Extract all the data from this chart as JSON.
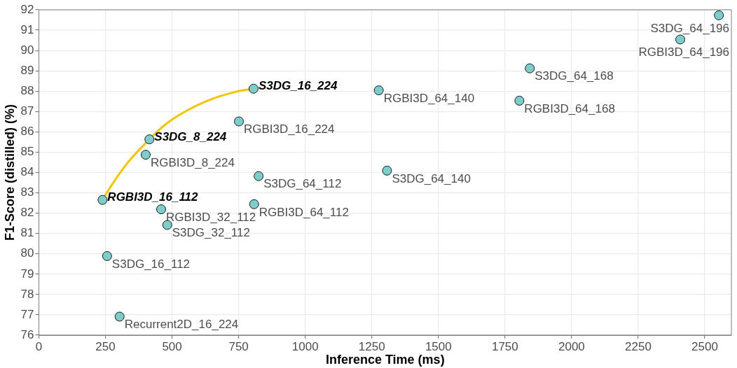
{
  "chart_data": {
    "type": "scatter",
    "xlabel": "Inference Time (ms)",
    "ylabel": "F1-Score (distilled) (%)",
    "xlim": [
      0,
      2600
    ],
    "xticks": [
      0,
      250,
      500,
      750,
      1000,
      1250,
      1500,
      1750,
      2000,
      2250,
      2500
    ],
    "ylim": [
      76,
      92
    ],
    "yticks": [
      76,
      77,
      78,
      79,
      80,
      81,
      82,
      83,
      84,
      85,
      86,
      87,
      88,
      89,
      90,
      91,
      92
    ],
    "grid": true,
    "legend": false,
    "marker": "circle",
    "series": [
      {
        "type": "line",
        "marker": "none",
        "color": "#f5c400",
        "x": [
          239,
          244,
          329,
          415,
          472,
          562,
          651,
          741,
          806
        ],
        "values": [
          82.65,
          82.77,
          84.41,
          85.63,
          86.33,
          87.09,
          87.62,
          87.97,
          88.12
        ]
      },
      {
        "color": "#7fcdcb",
        "x": [
          239,
          415,
          806,
          751,
          401,
          825,
          808,
          459,
          482,
          256,
          303,
          1276,
          1307,
          1843,
          1804,
          2553,
          2408
        ],
        "values": [
          82.65,
          85.63,
          88.12,
          86.51,
          84.87,
          83.82,
          82.44,
          82.19,
          81.42,
          79.89,
          76.91,
          88.04,
          84.09,
          89.12,
          87.53,
          91.73,
          90.54
        ]
      }
    ],
    "annotations": [
      {
        "text": "RGBI3D_16_112",
        "x": 239,
        "y": 82.65
      },
      {
        "text": "S3DG_8_224",
        "x": 415,
        "y": 85.63
      },
      {
        "text": "S3DG_16_224",
        "x": 806,
        "y": 88.12
      },
      {
        "text": "RGBI3D_16_224",
        "x": 751,
        "y": 86.51
      },
      {
        "text": "RGBI3D_8_224",
        "x": 401,
        "y": 84.87
      },
      {
        "text": "S3DG_64_112",
        "x": 825,
        "y": 83.82
      },
      {
        "text": "RGBI3D_64_112",
        "x": 808,
        "y": 82.44
      },
      {
        "text": "RGBI3D_32_112",
        "x": 459,
        "y": 82.19
      },
      {
        "text": "S3DG_32_112",
        "x": 482,
        "y": 81.42
      },
      {
        "text": "S3DG_16_112",
        "x": 256,
        "y": 79.89
      },
      {
        "text": "Recurrent2D_16_224",
        "x": 303,
        "y": 76.91
      },
      {
        "text": "RGBI3D_64_140",
        "x": 1276,
        "y": 88.04
      },
      {
        "text": "S3DG_64_140",
        "x": 1307,
        "y": 84.09
      },
      {
        "text": "S3DG_64_168",
        "x": 1843,
        "y": 89.12
      },
      {
        "text": "RGBI3D_64_168",
        "x": 1804,
        "y": 87.53
      },
      {
        "text": "S3DG_64_196",
        "x": 2553,
        "y": 91.73
      },
      {
        "text": "RGBI3D_64_196",
        "x": 2408,
        "y": 90.54
      }
    ]
  }
}
